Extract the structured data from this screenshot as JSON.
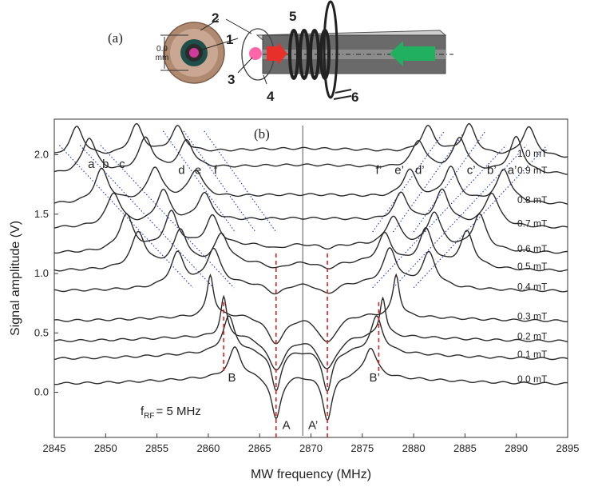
{
  "panel_a": {
    "label": "(a)",
    "dimension_value": "0.9",
    "dimension_unit": "mm",
    "numbers": [
      "1",
      "2",
      "3",
      "4",
      "5",
      "6"
    ]
  },
  "chart_data": {
    "type": "line",
    "panel_label": "(b)",
    "xlabel": "MW frequency (MHz)",
    "ylabel": "Signal amplitude (V)",
    "xlim": [
      2845,
      2895
    ],
    "ylim": [
      -0.38,
      2.3
    ],
    "xticks": [
      2845,
      2850,
      2855,
      2860,
      2865,
      2870,
      2875,
      2880,
      2885,
      2890,
      2895
    ],
    "yticks": [
      0.0,
      0.5,
      1.0,
      1.5,
      2.0
    ],
    "ytick_labels": [
      "0.0",
      "0.5",
      "1.0",
      "1.5",
      "2.0"
    ],
    "center_line_x": 2869.2,
    "annotation_fRF": "f",
    "annotation_fRF_sub": "RF",
    "annotation_fRF_value": "= 5 MHz",
    "series": [
      {
        "name": "0.0 mT",
        "offset": 0.07,
        "center_dip": -0.45,
        "peaks": [
          [
            2862.6,
            0.25,
            0.22
          ],
          [
            2866.6,
            -0.38,
            0.35
          ],
          [
            2871.6,
            -0.38,
            0.35
          ],
          [
            2875.8,
            0.25,
            0.22
          ]
        ]
      },
      {
        "name": "0.1 mT",
        "offset": 0.28,
        "center_dip": -0.4,
        "peaks": [
          [
            2862.0,
            0.3,
            0.22
          ],
          [
            2866.6,
            -0.35,
            0.35
          ],
          [
            2871.6,
            -0.35,
            0.35
          ],
          [
            2876.4,
            0.3,
            0.22
          ]
        ]
      },
      {
        "name": "0.2 mT",
        "offset": 0.43,
        "center_dip": -0.35,
        "peaks": [
          [
            2861.5,
            0.33,
            0.22
          ],
          [
            2866.6,
            -0.3,
            0.35
          ],
          [
            2871.6,
            -0.3,
            0.35
          ],
          [
            2877.0,
            0.33,
            0.22
          ]
        ]
      },
      {
        "name": "0.3 mT",
        "offset": 0.6,
        "center_dip": -0.3,
        "peaks": [
          [
            2860.2,
            0.35,
            0.24
          ],
          [
            2866.6,
            -0.25,
            0.35
          ],
          [
            2871.6,
            -0.25,
            0.35
          ],
          [
            2878.3,
            0.35,
            0.24
          ]
        ]
      },
      {
        "name": "0.4 mT",
        "offset": 0.85,
        "center_dip": -0.25,
        "peaks": [
          [
            2857.0,
            0.28,
            0.25
          ],
          [
            2860.5,
            0.3,
            0.25
          ],
          [
            2866.6,
            -0.1,
            0.35
          ],
          [
            2871.6,
            -0.1,
            0.35
          ],
          [
            2877.7,
            0.3,
            0.25
          ],
          [
            2881.5,
            0.28,
            0.25
          ]
        ]
      },
      {
        "name": "0.5 mT",
        "offset": 1.02,
        "center_dip": 0.1,
        "peaks": [
          [
            2853.2,
            0.3,
            0.25
          ],
          [
            2857.3,
            0.3,
            0.25
          ],
          [
            2861.3,
            0.25,
            0.25
          ],
          [
            2866.6,
            -0.06,
            0.35
          ],
          [
            2871.6,
            -0.06,
            0.35
          ],
          [
            2877.2,
            0.25,
            0.25
          ],
          [
            2881.2,
            0.3,
            0.25
          ],
          [
            2885.2,
            0.3,
            0.25
          ]
        ]
      },
      {
        "name": "0.6 mT",
        "offset": 1.17,
        "center_dip": 0.1,
        "peaks": [
          [
            2852.0,
            0.3,
            0.25
          ],
          [
            2856.4,
            0.3,
            0.25
          ],
          [
            2860.4,
            0.25,
            0.25
          ],
          [
            2866.6,
            -0.04,
            0.35
          ],
          [
            2871.6,
            -0.04,
            0.35
          ],
          [
            2878.0,
            0.25,
            0.25
          ],
          [
            2882.0,
            0.3,
            0.25
          ],
          [
            2886.4,
            0.3,
            0.25
          ]
        ]
      },
      {
        "name": "0.7 mT",
        "offset": 1.38,
        "center_dip": -0.1,
        "peaks": [
          [
            2850.8,
            0.28,
            0.25
          ],
          [
            2855.6,
            0.28,
            0.25
          ],
          [
            2859.6,
            0.24,
            0.25
          ],
          [
            2878.8,
            0.24,
            0.25
          ],
          [
            2882.8,
            0.28,
            0.25
          ],
          [
            2887.6,
            0.28,
            0.25
          ]
        ]
      },
      {
        "name": "0.8 mT",
        "offset": 1.58,
        "center_dip": -0.12,
        "peaks": [
          [
            2849.6,
            0.28,
            0.25
          ],
          [
            2854.8,
            0.28,
            0.25
          ],
          [
            2858.8,
            0.24,
            0.25
          ],
          [
            2879.6,
            0.24,
            0.25
          ],
          [
            2883.6,
            0.28,
            0.25
          ],
          [
            2888.8,
            0.28,
            0.25
          ]
        ]
      },
      {
        "name": "0.9 mT",
        "offset": 1.83,
        "center_dip": -0.12,
        "peaks": [
          [
            2848.4,
            0.3,
            0.25
          ],
          [
            2853.9,
            0.28,
            0.25
          ],
          [
            2857.9,
            0.24,
            0.25
          ],
          [
            2880.5,
            0.24,
            0.25
          ],
          [
            2884.5,
            0.28,
            0.25
          ],
          [
            2890.0,
            0.3,
            0.25
          ]
        ]
      },
      {
        "name": "1.0 mT",
        "offset": 1.97,
        "center_dip": -0.12,
        "peaks": [
          [
            2847.2,
            0.25,
            0.25
          ],
          [
            2853.0,
            0.25,
            0.25
          ],
          [
            2857.0,
            0.22,
            0.25
          ],
          [
            2881.4,
            0.22,
            0.25
          ],
          [
            2885.4,
            0.25,
            0.25
          ],
          [
            2891.2,
            0.25,
            0.25
          ]
        ]
      }
    ],
    "peak_labels": [
      {
        "text": "a",
        "x": 2848.6,
        "y": 1.89
      },
      {
        "text": "b",
        "x": 2850.0,
        "y": 1.89
      },
      {
        "text": "c",
        "x": 2851.6,
        "y": 1.89
      },
      {
        "text": "d",
        "x": 2857.4,
        "y": 1.84
      },
      {
        "text": "e",
        "x": 2859.0,
        "y": 1.84
      },
      {
        "text": "f",
        "x": 2860.7,
        "y": 1.84
      },
      {
        "text": "f’",
        "x": 2876.6,
        "y": 1.84
      },
      {
        "text": "e’",
        "x": 2878.6,
        "y": 1.84
      },
      {
        "text": "d’",
        "x": 2880.6,
        "y": 1.84
      },
      {
        "text": "c’",
        "x": 2885.6,
        "y": 1.84
      },
      {
        "text": "b’",
        "x": 2887.6,
        "y": 1.84
      },
      {
        "text": "a’",
        "x": 2889.6,
        "y": 1.84
      },
      {
        "text": "B",
        "x": 2862.3,
        "y": 0.09
      },
      {
        "text": "B’",
        "x": 2876.2,
        "y": 0.09
      },
      {
        "text": "A",
        "x": 2867.6,
        "y": -0.31
      },
      {
        "text": "A’",
        "x": 2870.2,
        "y": -0.31
      }
    ],
    "red_markers": [
      {
        "x": 2861.5,
        "y1": 0.18,
        "y2": 0.77
      },
      {
        "x": 2866.6,
        "y1": -0.38,
        "y2": 1.17
      },
      {
        "x": 2871.6,
        "y1": -0.38,
        "y2": 1.17
      },
      {
        "x": 2876.6,
        "y1": 0.18,
        "y2": 0.77
      }
    ],
    "guide_lines": [
      {
        "x1": 2845.5,
        "y1": 2.08,
        "x2": 2858.5,
        "y2": 0.88
      },
      {
        "x1": 2847.5,
        "y1": 2.08,
        "x2": 2860.5,
        "y2": 0.88
      },
      {
        "x1": 2849.5,
        "y1": 2.08,
        "x2": 2862.5,
        "y2": 0.88
      },
      {
        "x1": 2855.6,
        "y1": 2.2,
        "x2": 2862.6,
        "y2": 1.35
      },
      {
        "x1": 2857.6,
        "y1": 2.2,
        "x2": 2864.6,
        "y2": 1.35
      },
      {
        "x1": 2859.6,
        "y1": 2.2,
        "x2": 2866.6,
        "y2": 1.35
      },
      {
        "x1": 2876.0,
        "y1": 1.35,
        "x2": 2883.0,
        "y2": 2.2
      },
      {
        "x1": 2878.0,
        "y1": 1.35,
        "x2": 2885.0,
        "y2": 2.2
      },
      {
        "x1": 2880.0,
        "y1": 1.35,
        "x2": 2887.0,
        "y2": 2.2
      },
      {
        "x1": 2876.0,
        "y1": 0.88,
        "x2": 2889.0,
        "y2": 2.08
      },
      {
        "x1": 2878.0,
        "y1": 0.88,
        "x2": 2891.0,
        "y2": 2.08
      },
      {
        "x1": 2880.0,
        "y1": 0.88,
        "x2": 2893.0,
        "y2": 2.08
      }
    ],
    "colors": {
      "trace": "#2a2a2a",
      "marker": "#e02020",
      "guide": "#3344cc",
      "axis": "#333333"
    }
  }
}
